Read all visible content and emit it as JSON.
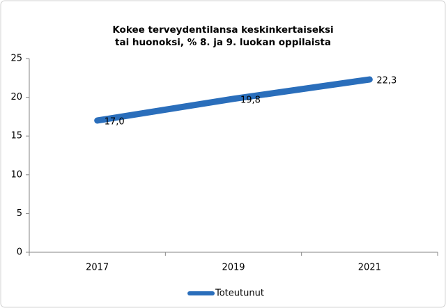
{
  "chart_data": {
    "type": "line",
    "title": "Kokee terveydentilansa keskinkertaiseksi tai huonoksi, % 8. ja 9. luokan oppilaista",
    "categories": [
      "2017",
      "2019",
      "2021"
    ],
    "series": [
      {
        "name": "Toteutunut",
        "color": "#2a6ebb",
        "values": [
          17.0,
          19.8,
          22.3
        ],
        "value_labels": [
          "17,0",
          "19,8",
          "22,3"
        ]
      }
    ],
    "ylim": [
      0,
      25
    ],
    "yticks": [
      0,
      5,
      10,
      15,
      20,
      25
    ],
    "grid": false,
    "legend": "bottom"
  }
}
